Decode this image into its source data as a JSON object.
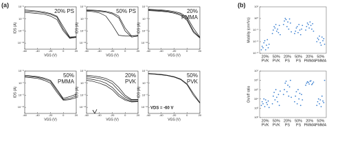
{
  "panel_labels": [
    "(a)",
    "(b)"
  ],
  "chart_data": [
    {
      "type": "line",
      "label_lines": [
        "20% PS"
      ],
      "xlabel": "VGS (V)",
      "ylabel": "IDS (A)",
      "ylog": true,
      "color": "#111",
      "x": [
        -60,
        -50,
        -40,
        -30,
        -20,
        -10,
        0,
        10,
        20
      ],
      "xlim": [
        -60,
        20
      ],
      "xticks": [
        -60,
        -40,
        -20,
        0,
        20
      ],
      "ylim": [
        1e-12,
        1e-05
      ],
      "yticks": [
        {
          "value": 1e-11,
          "label": "10⁻¹¹"
        },
        {
          "value": 1e-09,
          "label": "10⁻⁹"
        },
        {
          "value": 1e-07,
          "label": "10⁻⁷"
        },
        {
          "value": 1e-05,
          "label": "10⁻⁵"
        }
      ],
      "series": [
        {
          "values": [
            3e-06,
            2.5e-06,
            2e-06,
            1.4e-06,
            8e-07,
            3e-07,
            5e-09,
            1e-10,
            1.2e-10
          ]
        },
        {
          "values": [
            2e-06,
            1.8e-06,
            1.4e-06,
            1e-06,
            6e-07,
            2e-07,
            2e-09,
            8e-11,
            1e-10
          ]
        },
        {
          "values": [
            1.2e-06,
            1e-06,
            8e-07,
            6e-07,
            3e-07,
            8e-08,
            1e-09,
            6e-11,
            9e-11
          ]
        }
      ]
    },
    {
      "type": "line",
      "label_lines": [
        "50% PS"
      ],
      "xlabel": "VGS (V)",
      "ylabel": "IDS (A)",
      "ylog": true,
      "color": "#111",
      "x": [
        -60,
        -50,
        -40,
        -30,
        -20,
        -10,
        0,
        10,
        20
      ],
      "xlim": [
        -60,
        20
      ],
      "xticks": [
        -60,
        -40,
        -20,
        0,
        20
      ],
      "ylim": [
        1e-12,
        1e-05
      ],
      "yticks": [
        {
          "value": 1e-11,
          "label": "10⁻¹¹"
        },
        {
          "value": 1e-09,
          "label": "10⁻⁹"
        },
        {
          "value": 1e-07,
          "label": "10⁻⁷"
        },
        {
          "value": 1e-05,
          "label": "10⁻⁵"
        }
      ],
      "series": [
        {
          "values": [
            3e-06,
            2.8e-06,
            2.4e-06,
            1.8e-06,
            1e-06,
            3e-07,
            3e-09,
            1.5e-10,
            2e-10
          ]
        },
        {
          "values": [
            2.5e-06,
            2.2e-06,
            1.8e-06,
            1.3e-06,
            7e-07,
            1.5e-07,
            1e-09,
            1e-10,
            1.5e-10
          ]
        },
        {
          "values": [
            2e-06,
            1.6e-06,
            1e-06,
            3e-07,
            1e-08,
            2e-10,
            1.5e-10,
            1.5e-10,
            2e-10
          ]
        }
      ]
    },
    {
      "type": "line",
      "label_lines": [
        "20%",
        "PMMA"
      ],
      "xlabel": "VGS (V)",
      "ylabel": "IDS (A)",
      "ylog": true,
      "color": "#111",
      "x": [
        -60,
        -50,
        -40,
        -30,
        -20,
        -10,
        0,
        10,
        20
      ],
      "xlim": [
        -60,
        20
      ],
      "xticks": [
        -60,
        -40,
        -20,
        0,
        20
      ],
      "ylim": [
        1e-12,
        1e-05
      ],
      "yticks": [
        {
          "value": 1e-11,
          "label": "10⁻¹¹"
        },
        {
          "value": 1e-09,
          "label": "10⁻⁹"
        },
        {
          "value": 1e-07,
          "label": "10⁻⁷"
        },
        {
          "value": 1e-05,
          "label": "10⁻⁵"
        }
      ],
      "series": [
        {
          "values": [
            4e-06,
            3.5e-06,
            3e-06,
            2.4e-06,
            1.7e-06,
            9e-07,
            2e-07,
            3e-09,
            1e-10
          ]
        },
        {
          "values": [
            3e-06,
            2.7e-06,
            2.3e-06,
            1.8e-06,
            1.2e-06,
            6e-07,
            1e-07,
            1e-09,
            8e-11
          ]
        },
        {
          "values": [
            2.4e-06,
            2.1e-06,
            1.8e-06,
            1.4e-06,
            9e-07,
            4e-07,
            6e-08,
            6e-10,
            7e-11
          ]
        }
      ]
    },
    {
      "type": "line",
      "label_lines": [
        "50%",
        "PMMA"
      ],
      "xlabel": "VGS (V)",
      "ylabel": "IDS (A)",
      "ylog": true,
      "color": "#111",
      "x": [
        -60,
        -50,
        -40,
        -30,
        -20,
        -10,
        0,
        10,
        20
      ],
      "xlim": [
        -60,
        20
      ],
      "xticks": [
        -60,
        -40,
        -20,
        0,
        20
      ],
      "ylim": [
        1e-12,
        1e-05
      ],
      "yticks": [
        {
          "value": 1e-11,
          "label": "10⁻¹¹"
        },
        {
          "value": 1e-09,
          "label": "10⁻⁹"
        },
        {
          "value": 1e-07,
          "label": "10⁻⁷"
        },
        {
          "value": 1e-05,
          "label": "10⁻⁵"
        }
      ],
      "series": [
        {
          "values": [
            2e-06,
            1.6e-06,
            1.2e-06,
            7e-07,
            3e-07,
            1e-08,
            3e-10,
            6e-10,
            1.5e-09
          ]
        },
        {
          "values": [
            1.5e-06,
            1.2e-06,
            9e-07,
            5e-07,
            2e-07,
            6e-09,
            2e-10,
            3e-10,
            8e-10
          ]
        },
        {
          "values": [
            1e-06,
            8e-07,
            6e-07,
            3e-07,
            1e-07,
            3e-09,
            1.5e-10,
            2e-10,
            4e-10
          ]
        }
      ]
    },
    {
      "type": "line",
      "label_lines": [
        "20%",
        "PVK"
      ],
      "xlabel": "VGS (V)",
      "ylabel": "IDS (A)",
      "ylog": true,
      "color": "#111",
      "x": [
        -60,
        -50,
        -40,
        -30,
        -20,
        -10,
        0,
        10,
        20
      ],
      "xlim": [
        -60,
        20
      ],
      "xticks": [
        -60,
        -40,
        -20,
        0,
        20
      ],
      "ylim": [
        1e-12,
        1e-05
      ],
      "yticks": [
        {
          "value": 1e-11,
          "label": "10⁻¹¹"
        },
        {
          "value": 1e-09,
          "label": "10⁻⁹"
        },
        {
          "value": 1e-07,
          "label": "10⁻⁷"
        },
        {
          "value": 1e-05,
          "label": "10⁻⁵"
        }
      ],
      "series": [
        {
          "values": [
            2e-06,
            1.6e-06,
            1.1e-06,
            6e-07,
            2e-07,
            2e-08,
            1e-09,
            2e-10,
            2e-10
          ]
        },
        {
          "values": [
            1.2e-06,
            9e-07,
            6e-07,
            3e-07,
            8e-08,
            6e-09,
            5e-10,
            1.5e-10,
            1.5e-10
          ]
        },
        {
          "values": [
            6e-07,
            4e-07,
            2.5e-07,
            1e-07,
            2e-08,
            1.5e-09,
            2.5e-10,
            1e-10,
            1e-10
          ]
        },
        {
          "values": [
            3e-07,
            2e-07,
            1e-07,
            4e-08,
            8e-09,
            7e-10,
            1.5e-10,
            8e-11,
            9e-11
          ]
        }
      ]
    },
    {
      "type": "line",
      "label_lines": [
        "50%",
        "PVK"
      ],
      "annotation": "VDS = -60 V",
      "xlabel": "VGS (V)",
      "ylabel": "IDS (A)",
      "ylog": true,
      "color": "#111",
      "x": [
        -60,
        -50,
        -40,
        -30,
        -20,
        -10,
        0,
        10,
        20
      ],
      "xlim": [
        -60,
        20
      ],
      "xticks": [
        -60,
        -40,
        -20,
        0,
        20
      ],
      "ylim": [
        1e-12,
        1e-05
      ],
      "yticks": [
        {
          "value": 1e-11,
          "label": "10⁻¹¹"
        },
        {
          "value": 1e-09,
          "label": "10⁻⁹"
        },
        {
          "value": 1e-07,
          "label": "10⁻⁷"
        },
        {
          "value": 1e-05,
          "label": "10⁻⁵"
        }
      ],
      "series": [
        {
          "values": [
            4e-06,
            3.5e-06,
            2.8e-06,
            2e-06,
            1.2e-06,
            5e-07,
            8e-08,
            2e-09,
            6e-11
          ]
        },
        {
          "values": [
            3.5e-06,
            3e-06,
            2.4e-06,
            1.7e-06,
            1e-06,
            4e-07,
            6e-08,
            1e-09,
            5e-11
          ]
        }
      ]
    },
    {
      "type": "strip",
      "ylabel": "Mobility (cm²/Vs)",
      "ylog": true,
      "color": "#3a7fd0",
      "categories": [
        {
          "top": "20%",
          "bottom": "PVK"
        },
        {
          "top": "50%",
          "bottom": "PVK"
        },
        {
          "top": "20%",
          "bottom": "PS"
        },
        {
          "top": "50%",
          "bottom": "PS"
        },
        {
          "top": "20%",
          "bottom": "PMMA"
        },
        {
          "top": "50%",
          "bottom": "PMMA"
        }
      ],
      "ylim": [
        0.001,
        10
      ],
      "yticks": [
        {
          "value": 0.001,
          "label": "10⁻³"
        },
        {
          "value": 0.01,
          "label": "10⁻²"
        },
        {
          "value": 0.1,
          "label": "10⁻¹"
        },
        {
          "value": 1,
          "label": "10⁰"
        },
        {
          "value": 10,
          "label": "10¹"
        }
      ],
      "values": [
        [
          0.002,
          0.004,
          0.003,
          0.008,
          0.012,
          0.002,
          0.005,
          0.015,
          0.003,
          0.006
        ],
        [
          0.05,
          0.1,
          0.2,
          0.15,
          0.3,
          0.08,
          0.12,
          0.06,
          0.25,
          0.04
        ],
        [
          0.3,
          0.6,
          1,
          0.8,
          0.2,
          0.5,
          0.12,
          0.9,
          0.4,
          0.07
        ],
        [
          0.05,
          0.08,
          0.15,
          0.2,
          0.06,
          0.3,
          0.1,
          0.04,
          0.12,
          0.25
        ],
        [
          0.1,
          0.2,
          0.4,
          0.3,
          0.15,
          0.5,
          0.25,
          0.12,
          0.35,
          0.08
        ],
        [
          0.01,
          0.02,
          0.015,
          0.03,
          0.008,
          0.005,
          0.025,
          0.012,
          0.018,
          0.006
        ]
      ]
    },
    {
      "type": "strip",
      "ylabel": "On/off ratio",
      "ylog": true,
      "color": "#3a7fd0",
      "categories": [
        {
          "top": "20%",
          "bottom": "PVK"
        },
        {
          "top": "50%",
          "bottom": "PVK"
        },
        {
          "top": "20%",
          "bottom": "PS"
        },
        {
          "top": "50%",
          "bottom": "PS"
        },
        {
          "top": "20%",
          "bottom": "PMMA"
        },
        {
          "top": "50%",
          "bottom": "PMMA"
        }
      ],
      "ylim": [
        100,
        10000000
      ],
      "yticks": [
        {
          "value": 100,
          "label": "10²"
        },
        {
          "value": 1000,
          "label": "10³"
        },
        {
          "value": 10000,
          "label": "10⁴"
        },
        {
          "value": 100000,
          "label": "10⁵"
        },
        {
          "value": 1000000,
          "label": "10⁶"
        },
        {
          "value": 10000000,
          "label": "10⁷"
        }
      ],
      "values": [
        [
          2000,
          5000,
          3000,
          10000,
          1500,
          8000,
          4000,
          2500,
          6000,
          1200
        ],
        [
          3000,
          20000,
          50000,
          8000,
          100000,
          15000,
          5000,
          30000,
          2000,
          70000
        ],
        [
          30000,
          100000,
          500000,
          800000,
          60000,
          300000,
          20000,
          200000,
          1000000,
          15000
        ],
        [
          5000,
          20000,
          60000,
          3000,
          100000,
          10000,
          40000,
          2000,
          30000,
          8000
        ],
        [
          300000,
          500000,
          700000,
          600000,
          400000,
          800000,
          900000,
          350000,
          450000,
          650000
        ],
        [
          2000,
          5000,
          10000,
          3000,
          8000,
          1500,
          20000,
          6000,
          4000,
          1000000
        ]
      ]
    }
  ]
}
